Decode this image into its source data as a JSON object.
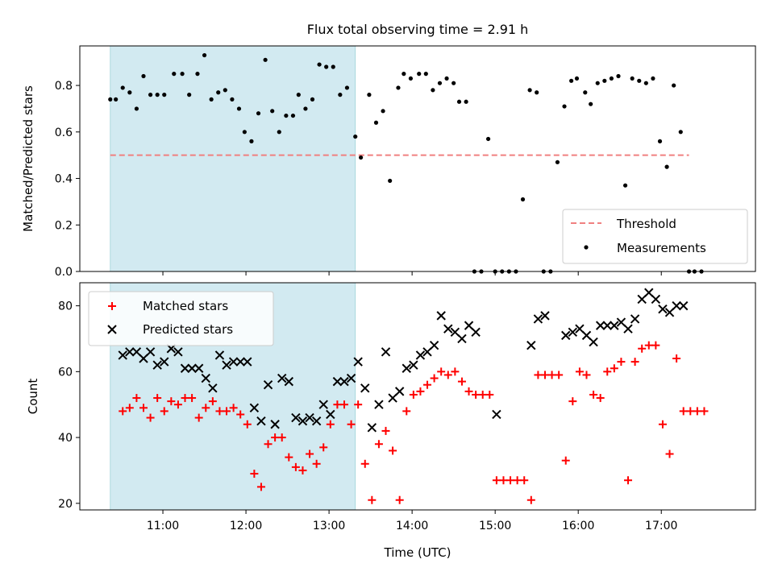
{
  "chart_data": [
    {
      "type": "scatter",
      "title": "Flux total observing time = 2.91 h",
      "xlabel": "",
      "ylabel": "Matched/Predicted stars",
      "ylim": [
        0,
        0.97
      ],
      "yticks": [
        "0.0",
        "0.2",
        "0.4",
        "0.6",
        "0.8"
      ],
      "xlim_minutes": [
        600,
        1088
      ],
      "legend": {
        "placement": "lower-right",
        "entries": [
          "Threshold",
          "Measurements"
        ]
      },
      "shaded_span": {
        "start": "10:22",
        "end": "13:19",
        "color": "#add8e6"
      },
      "threshold": {
        "name": "Threshold",
        "value": 0.5,
        "x_start": "10:22",
        "x_end": "17:20",
        "color": "#f08080"
      },
      "series": [
        {
          "name": "Measurements",
          "color": "#000000",
          "points": [
            [
              "10:22",
              0.74
            ],
            [
              "10:26",
              0.74
            ],
            [
              "10:31",
              0.79
            ],
            [
              "10:36",
              0.77
            ],
            [
              "10:41",
              0.7
            ],
            [
              "10:46",
              0.84
            ],
            [
              "10:51",
              0.76
            ],
            [
              "10:56",
              0.76
            ],
            [
              "11:01",
              0.76
            ],
            [
              "11:08",
              0.85
            ],
            [
              "11:14",
              0.85
            ],
            [
              "11:19",
              0.76
            ],
            [
              "11:25",
              0.85
            ],
            [
              "11:30",
              0.93
            ],
            [
              "11:35",
              0.74
            ],
            [
              "11:40",
              0.77
            ],
            [
              "11:45",
              0.78
            ],
            [
              "11:50",
              0.74
            ],
            [
              "11:55",
              0.7
            ],
            [
              "11:59",
              0.6
            ],
            [
              "12:04",
              0.56
            ],
            [
              "12:09",
              0.68
            ],
            [
              "12:14",
              0.91
            ],
            [
              "12:19",
              0.69
            ],
            [
              "12:24",
              0.6
            ],
            [
              "12:29",
              0.67
            ],
            [
              "12:34",
              0.67
            ],
            [
              "12:38",
              0.76
            ],
            [
              "12:43",
              0.7
            ],
            [
              "12:48",
              0.74
            ],
            [
              "12:53",
              0.89
            ],
            [
              "12:58",
              0.88
            ],
            [
              "13:03",
              0.88
            ],
            [
              "13:08",
              0.76
            ],
            [
              "13:13",
              0.79
            ],
            [
              "13:19",
              0.58
            ],
            [
              "13:23",
              0.49
            ],
            [
              "13:29",
              0.76
            ],
            [
              "13:34",
              0.64
            ],
            [
              "13:39",
              0.69
            ],
            [
              "13:44",
              0.39
            ],
            [
              "13:50",
              0.79
            ],
            [
              "13:54",
              0.85
            ],
            [
              "13:59",
              0.83
            ],
            [
              "14:05",
              0.85
            ],
            [
              "14:10",
              0.85
            ],
            [
              "14:15",
              0.78
            ],
            [
              "14:20",
              0.81
            ],
            [
              "14:25",
              0.83
            ],
            [
              "14:30",
              0.81
            ],
            [
              "14:34",
              0.73
            ],
            [
              "14:39",
              0.73
            ],
            [
              "14:45",
              0.0
            ],
            [
              "14:50",
              0.0
            ],
            [
              "14:55",
              0.57
            ],
            [
              "15:00",
              0.0
            ],
            [
              "15:05",
              0.0
            ],
            [
              "15:10",
              0.0
            ],
            [
              "15:15",
              0.0
            ],
            [
              "15:20",
              0.31
            ],
            [
              "15:25",
              0.78
            ],
            [
              "15:30",
              0.77
            ],
            [
              "15:35",
              0.0
            ],
            [
              "15:40",
              0.0
            ],
            [
              "15:45",
              0.47
            ],
            [
              "15:50",
              0.71
            ],
            [
              "15:55",
              0.82
            ],
            [
              "15:59",
              0.83
            ],
            [
              "16:05",
              0.77
            ],
            [
              "16:09",
              0.72
            ],
            [
              "16:14",
              0.81
            ],
            [
              "16:19",
              0.82
            ],
            [
              "16:24",
              0.83
            ],
            [
              "16:29",
              0.84
            ],
            [
              "16:34",
              0.37
            ],
            [
              "16:39",
              0.83
            ],
            [
              "16:44",
              0.82
            ],
            [
              "16:49",
              0.81
            ],
            [
              "16:54",
              0.83
            ],
            [
              "16:59",
              0.56
            ],
            [
              "17:04",
              0.45
            ],
            [
              "17:09",
              0.8
            ],
            [
              "17:14",
              0.6
            ],
            [
              "17:20",
              0.0
            ],
            [
              "17:24",
              0.0
            ],
            [
              "17:29",
              0.0
            ]
          ]
        }
      ]
    },
    {
      "type": "scatter",
      "title": "",
      "xlabel": "Time (UTC)",
      "ylabel": "Count",
      "ylim": [
        18,
        87
      ],
      "yticks": [
        "20",
        "40",
        "60",
        "80"
      ],
      "xticks": [
        "11:00",
        "12:00",
        "13:00",
        "14:00",
        "15:00",
        "16:00",
        "17:00"
      ],
      "xlim_minutes": [
        600,
        1088
      ],
      "legend": {
        "placement": "upper-left",
        "entries": [
          "Matched stars",
          "Predicted stars"
        ]
      },
      "shaded_span": {
        "start": "10:22",
        "end": "13:19",
        "color": "#add8e6"
      },
      "series": [
        {
          "name": "Matched stars",
          "marker": "plus",
          "color": "#ff0000",
          "points": [
            [
              "10:31",
              48
            ],
            [
              "10:36",
              49
            ],
            [
              "10:41",
              52
            ],
            [
              "10:46",
              49
            ],
            [
              "10:51",
              46
            ],
            [
              "10:56",
              52
            ],
            [
              "11:01",
              48
            ],
            [
              "11:06",
              51
            ],
            [
              "11:11",
              50
            ],
            [
              "11:16",
              52
            ],
            [
              "11:21",
              52
            ],
            [
              "11:26",
              46
            ],
            [
              "11:31",
              49
            ],
            [
              "11:36",
              51
            ],
            [
              "11:41",
              48
            ],
            [
              "11:46",
              48
            ],
            [
              "11:51",
              49
            ],
            [
              "11:56",
              47
            ],
            [
              "12:01",
              44
            ],
            [
              "12:06",
              29
            ],
            [
              "12:11",
              25
            ],
            [
              "12:16",
              38
            ],
            [
              "12:21",
              40
            ],
            [
              "12:26",
              40
            ],
            [
              "12:31",
              34
            ],
            [
              "12:36",
              31
            ],
            [
              "12:41",
              30
            ],
            [
              "12:46",
              35
            ],
            [
              "12:51",
              32
            ],
            [
              "12:56",
              37
            ],
            [
              "13:01",
              44
            ],
            [
              "13:06",
              50
            ],
            [
              "13:11",
              50
            ],
            [
              "13:16",
              44
            ],
            [
              "13:21",
              50
            ],
            [
              "13:26",
              32
            ],
            [
              "13:31",
              21
            ],
            [
              "13:36",
              38
            ],
            [
              "13:41",
              42
            ],
            [
              "13:46",
              36
            ],
            [
              "13:51",
              21
            ],
            [
              "13:56",
              48
            ],
            [
              "14:01",
              53
            ],
            [
              "14:06",
              54
            ],
            [
              "14:11",
              56
            ],
            [
              "14:16",
              58
            ],
            [
              "14:21",
              60
            ],
            [
              "14:26",
              59
            ],
            [
              "14:31",
              60
            ],
            [
              "14:36",
              57
            ],
            [
              "14:41",
              54
            ],
            [
              "14:46",
              53
            ],
            [
              "14:51",
              53
            ],
            [
              "14:56",
              53
            ],
            [
              "15:01",
              27
            ],
            [
              "15:06",
              27
            ],
            [
              "15:11",
              27
            ],
            [
              "15:16",
              27
            ],
            [
              "15:21",
              27
            ],
            [
              "15:26",
              21
            ],
            [
              "15:31",
              59
            ],
            [
              "15:36",
              59
            ],
            [
              "15:41",
              59
            ],
            [
              "15:46",
              59
            ],
            [
              "15:51",
              33
            ],
            [
              "15:56",
              51
            ],
            [
              "16:01",
              60
            ],
            [
              "16:06",
              59
            ],
            [
              "16:11",
              53
            ],
            [
              "16:16",
              52
            ],
            [
              "16:21",
              60
            ],
            [
              "16:26",
              61
            ],
            [
              "16:31",
              63
            ],
            [
              "16:36",
              27
            ],
            [
              "16:41",
              63
            ],
            [
              "16:46",
              67
            ],
            [
              "16:51",
              68
            ],
            [
              "16:56",
              68
            ],
            [
              "17:01",
              44
            ],
            [
              "17:06",
              35
            ],
            [
              "17:11",
              64
            ],
            [
              "17:16",
              48
            ],
            [
              "17:21",
              48
            ],
            [
              "17:26",
              48
            ],
            [
              "17:31",
              48
            ]
          ]
        },
        {
          "name": "Predicted stars",
          "marker": "x",
          "color": "#000000",
          "points": [
            [
              "10:31",
              65
            ],
            [
              "10:36",
              66
            ],
            [
              "10:41",
              66
            ],
            [
              "10:46",
              64
            ],
            [
              "10:51",
              66
            ],
            [
              "10:56",
              62
            ],
            [
              "11:01",
              63
            ],
            [
              "11:06",
              67
            ],
            [
              "11:11",
              66
            ],
            [
              "11:16",
              61
            ],
            [
              "11:21",
              61
            ],
            [
              "11:26",
              61
            ],
            [
              "11:31",
              58
            ],
            [
              "11:36",
              55
            ],
            [
              "11:41",
              65
            ],
            [
              "11:46",
              62
            ],
            [
              "11:51",
              63
            ],
            [
              "11:56",
              63
            ],
            [
              "12:01",
              63
            ],
            [
              "12:06",
              49
            ],
            [
              "12:11",
              45
            ],
            [
              "12:16",
              56
            ],
            [
              "12:21",
              44
            ],
            [
              "12:26",
              58
            ],
            [
              "12:31",
              57
            ],
            [
              "12:36",
              46
            ],
            [
              "12:41",
              45
            ],
            [
              "12:46",
              46
            ],
            [
              "12:51",
              45
            ],
            [
              "12:56",
              50
            ],
            [
              "13:01",
              47
            ],
            [
              "13:06",
              57
            ],
            [
              "13:11",
              57
            ],
            [
              "13:16",
              58
            ],
            [
              "13:21",
              63
            ],
            [
              "13:26",
              55
            ],
            [
              "13:31",
              43
            ],
            [
              "13:36",
              50
            ],
            [
              "13:41",
              66
            ],
            [
              "13:46",
              52
            ],
            [
              "13:51",
              54
            ],
            [
              "13:56",
              61
            ],
            [
              "14:01",
              62
            ],
            [
              "14:06",
              65
            ],
            [
              "14:11",
              66
            ],
            [
              "14:16",
              68
            ],
            [
              "14:21",
              77
            ],
            [
              "14:26",
              73
            ],
            [
              "14:31",
              72
            ],
            [
              "14:36",
              70
            ],
            [
              "14:41",
              74
            ],
            [
              "14:46",
              72
            ],
            [
              "15:01",
              47
            ],
            [
              "15:26",
              68
            ],
            [
              "15:31",
              76
            ],
            [
              "15:36",
              77
            ],
            [
              "15:51",
              71
            ],
            [
              "15:56",
              72
            ],
            [
              "16:01",
              73
            ],
            [
              "16:06",
              71
            ],
            [
              "16:11",
              69
            ],
            [
              "16:16",
              74
            ],
            [
              "16:21",
              74
            ],
            [
              "16:26",
              74
            ],
            [
              "16:31",
              75
            ],
            [
              "16:36",
              73
            ],
            [
              "16:41",
              76
            ],
            [
              "16:46",
              82
            ],
            [
              "16:51",
              84
            ],
            [
              "16:56",
              82
            ],
            [
              "17:01",
              79
            ],
            [
              "17:06",
              78
            ],
            [
              "17:11",
              80
            ],
            [
              "17:16",
              80
            ]
          ]
        }
      ]
    }
  ]
}
